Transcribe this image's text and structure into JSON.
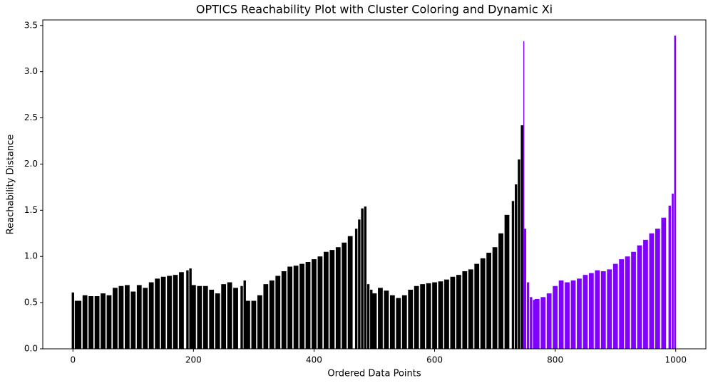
{
  "chart_data": {
    "type": "bar",
    "title": "OPTICS Reachability Plot with Cluster Coloring and Dynamic Xi",
    "x_label": "Ordered Data Points",
    "y_label": "Reachability Distance",
    "series": [
      {
        "color": "#000000",
        "x": [
          0,
          5,
          10,
          20,
          30,
          40,
          50,
          60,
          70,
          80,
          90,
          100,
          110,
          120,
          130,
          140,
          150,
          160,
          170,
          180,
          190,
          195,
          200,
          210,
          220,
          230,
          240,
          250,
          260,
          270,
          280,
          285,
          290,
          300,
          310,
          320,
          330,
          340,
          350,
          360,
          370,
          380,
          390,
          400,
          410,
          420,
          430,
          440,
          450,
          460,
          470,
          475,
          480,
          485,
          490,
          495,
          500,
          510,
          520,
          530,
          540,
          550,
          560,
          570,
          580,
          590,
          600,
          610,
          620,
          630,
          640,
          650,
          660,
          670,
          680,
          690,
          700,
          710,
          720,
          730,
          735,
          740,
          745
        ],
        "values": [
          0.61,
          0.52,
          0.52,
          0.58,
          0.57,
          0.57,
          0.6,
          0.58,
          0.66,
          0.68,
          0.69,
          0.62,
          0.69,
          0.66,
          0.72,
          0.76,
          0.78,
          0.79,
          0.8,
          0.83,
          0.85,
          0.87,
          0.69,
          0.68,
          0.68,
          0.64,
          0.6,
          0.7,
          0.72,
          0.66,
          0.68,
          0.74,
          0.52,
          0.52,
          0.58,
          0.7,
          0.74,
          0.79,
          0.84,
          0.89,
          0.9,
          0.92,
          0.94,
          0.97,
          1.0,
          1.05,
          1.07,
          1.1,
          1.15,
          1.22,
          1.3,
          1.4,
          1.52,
          1.54,
          0.7,
          0.64,
          0.6,
          0.66,
          0.63,
          0.58,
          0.55,
          0.58,
          0.64,
          0.68,
          0.7,
          0.71,
          0.72,
          0.73,
          0.75,
          0.78,
          0.8,
          0.84,
          0.86,
          0.92,
          0.98,
          1.04,
          1.1,
          1.25,
          1.45,
          1.6,
          1.78,
          2.05,
          2.42
        ]
      },
      {
        "color": "#7f00ff",
        "x": [
          748,
          750,
          755,
          760,
          765,
          770,
          780,
          790,
          800,
          810,
          820,
          830,
          840,
          850,
          860,
          870,
          880,
          890,
          900,
          910,
          920,
          930,
          940,
          950,
          960,
          970,
          980,
          990,
          995,
          999
        ],
        "values": [
          3.33,
          1.3,
          0.72,
          0.56,
          0.53,
          0.54,
          0.56,
          0.6,
          0.68,
          0.74,
          0.72,
          0.74,
          0.76,
          0.8,
          0.82,
          0.85,
          0.84,
          0.86,
          0.92,
          0.97,
          1.0,
          1.05,
          1.12,
          1.18,
          1.25,
          1.3,
          1.42,
          1.55,
          1.68,
          3.39
        ]
      }
    ],
    "xlim": [
      -50,
      1050
    ],
    "xticks": [
      0,
      200,
      400,
      600,
      800,
      1000
    ],
    "ylim": [
      0,
      3.56
    ],
    "yticks": [
      {
        "value": 0,
        "label": "0.0"
      },
      {
        "value": 0.5,
        "label": "0.5"
      },
      {
        "value": 1,
        "label": "1.0"
      },
      {
        "value": 1.5,
        "label": "1.5"
      },
      {
        "value": 2,
        "label": "2.0"
      },
      {
        "value": 2.5,
        "label": "2.5"
      },
      {
        "value": 3,
        "label": "3.0"
      },
      {
        "value": 3.5,
        "label": "3.5"
      }
    ]
  }
}
